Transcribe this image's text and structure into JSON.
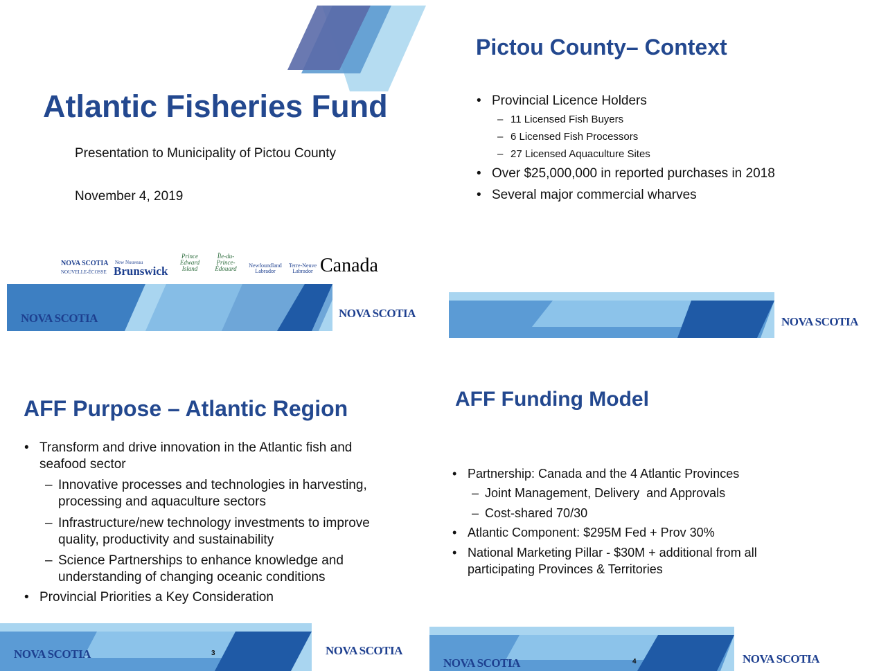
{
  "slides": [
    {
      "title": "Atlantic Fisheries Fund",
      "subtitle": "Presentation to Municipality of Pictou County",
      "date": "November 4, 2019",
      "partner_logos": [
        "NOVA SCOTIA",
        "NOUVELLE-ÉCOSSE",
        "New Nouveau",
        "Brunswick",
        "Prince Edward Island",
        "Île-du-Prince-Édouard",
        "Newfoundland Labrador",
        "Terre-Neuve Labrador",
        "Canada"
      ],
      "footer_logo": "NOVA SCOTIA"
    },
    {
      "title": "Pictou County– Context",
      "bullets": [
        {
          "text": "Provincial Licence Holders",
          "subs": [
            "11 Licensed Fish Buyers",
            "6 Licensed Fish Processors",
            "27 Licensed Aquaculture Sites"
          ]
        },
        {
          "text": "Over $25,000,000 in reported purchases in 2018"
        },
        {
          "text": "Several major commercial wharves"
        }
      ],
      "footer_logo": "NOVA SCOTIA"
    },
    {
      "title": "AFF Purpose – Atlantic Region",
      "bullets": [
        {
          "text": "Transform and drive innovation in the Atlantic fish and seafood sector",
          "subs": [
            "Innovative processes and technologies in harvesting, processing and aquaculture sectors",
            "Infrastructure/new technology investments to improve quality, productivity and sustainability",
            "Science Partnerships to enhance knowledge and understanding of changing oceanic conditions"
          ]
        },
        {
          "text": "Provincial Priorities a Key Consideration"
        }
      ],
      "footer_logo": "NOVA SCOTIA",
      "page_number": "3"
    },
    {
      "title": "AFF Funding Model",
      "bullets": [
        {
          "text": "Partnership: Canada and the 4 Atlantic Provinces",
          "subs": [
            "Joint Management, Delivery  and Approvals",
            "Cost-shared 70/30"
          ]
        },
        {
          "text": "Atlantic Component: $295M Fed + Prov 30%"
        },
        {
          "text": "National Marketing Pillar - $30M + additional from all participating Provinces & Territories"
        }
      ],
      "footer_logo": "NOVA SCOTIA",
      "page_number": "4"
    }
  ]
}
